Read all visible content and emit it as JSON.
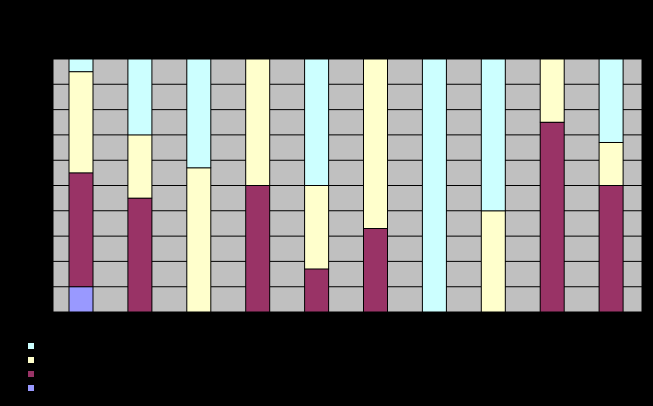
{
  "chart_data": {
    "type": "bar",
    "stacked": "percent",
    "title": "",
    "xlabel": "",
    "ylabel": "",
    "ylim": [
      0,
      100
    ],
    "grid": true,
    "legend_position": "bottom-left",
    "plot_background": "#c0c0c0",
    "categories": [
      "",
      "",
      "",
      "",
      "",
      "",
      "",
      "",
      "",
      ""
    ],
    "series": [
      {
        "color": "#9999ff",
        "values": [
          10,
          0,
          0,
          0,
          0,
          0,
          0,
          0,
          0,
          0
        ]
      },
      {
        "color": "#993366",
        "values": [
          45,
          45,
          0,
          50,
          17,
          33,
          0,
          0,
          75,
          50
        ]
      },
      {
        "color": "#ffffcc",
        "values": [
          40,
          25,
          57,
          50,
          33,
          67,
          0,
          40,
          25,
          17
        ]
      },
      {
        "color": "#ccffff",
        "values": [
          5,
          30,
          43,
          0,
          50,
          0,
          100,
          60,
          0,
          33
        ]
      }
    ]
  },
  "legend": {
    "items": [
      {
        "color": "#ccffff",
        "label": ""
      },
      {
        "color": "#ffffcc",
        "label": ""
      },
      {
        "color": "#993366",
        "label": ""
      },
      {
        "color": "#9999ff",
        "label": ""
      }
    ]
  }
}
